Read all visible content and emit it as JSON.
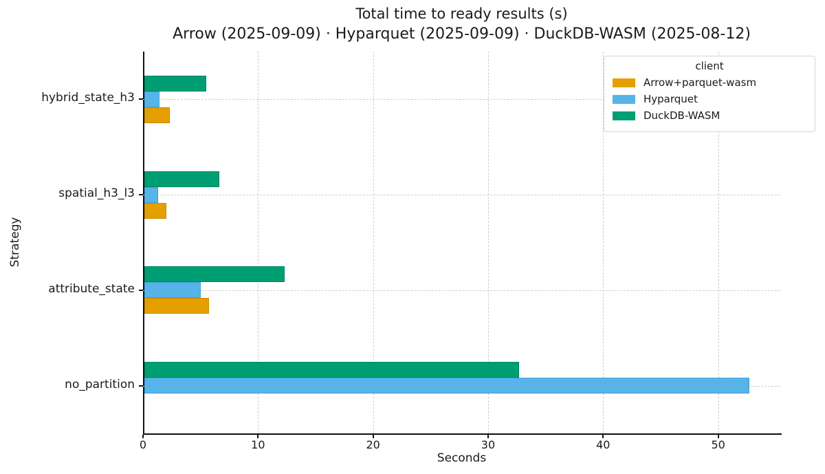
{
  "chart_data": {
    "type": "bar",
    "orientation": "horizontal",
    "title": "Total time to ready results (s)",
    "subtitle": "Arrow (2025-09-09) · Hyparquet (2025-09-09) · DuckDB-WASM (2025-08-12)",
    "xlabel": "Seconds",
    "ylabel": "Strategy",
    "categories": [
      "hybrid_state_h3",
      "spatial_h3_l3",
      "attribute_state",
      "no_partition"
    ],
    "xticks": [
      0,
      10,
      20,
      30,
      40,
      50
    ],
    "xlim": [
      0,
      55.4
    ],
    "grid": "both-dashed",
    "legend": {
      "title": "client",
      "position": "upper right"
    },
    "series": [
      {
        "name": "Arrow+parquet-wasm",
        "color": "#E69F00",
        "edge_color": "#c98a00",
        "values": [
          2.2,
          1.9,
          5.6,
          0
        ]
      },
      {
        "name": "Hyparquet",
        "color": "#56B4E9",
        "edge_color": "#41a0d6",
        "values": [
          1.3,
          1.2,
          4.9,
          52.6
        ]
      },
      {
        "name": "DuckDB-WASM",
        "color": "#009E73",
        "edge_color": "#008562",
        "values": [
          5.4,
          6.5,
          12.2,
          32.6
        ]
      }
    ]
  }
}
